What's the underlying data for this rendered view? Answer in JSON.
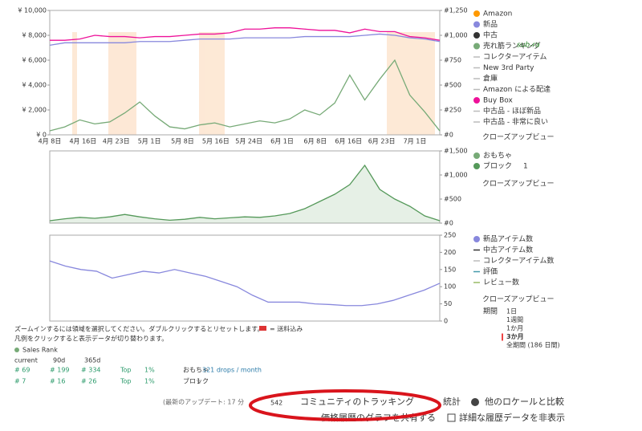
{
  "panels": [
    {
      "left_lim": [
        0,
        10000
      ],
      "left_ticks": [
        {
          "value": 10000,
          "label": "¥ 10,000"
        },
        {
          "value": 8000,
          "label": "¥ 8,000"
        },
        {
          "value": 6000,
          "label": "¥ 6,000"
        },
        {
          "value": 4000,
          "label": "¥ 4,000"
        },
        {
          "value": 2000,
          "label": "¥ 2,000"
        },
        {
          "value": 0,
          "label": "¥ 0"
        }
      ],
      "right_lim": [
        0,
        1250
      ],
      "right_ticks": [
        {
          "value": 1250,
          "label": "#1,250"
        },
        {
          "value": 1000,
          "label": "#1,000"
        },
        {
          "value": 750,
          "label": "#750"
        },
        {
          "value": 500,
          "label": "#500"
        },
        {
          "value": 250,
          "label": "#250"
        },
        {
          "value": 0,
          "label": "#0"
        }
      ],
      "x_labels": [
        "4月 8日",
        "4月 16日",
        "4月 23日",
        "5月 1日",
        "5月 8日",
        "5月 16日",
        "5月 24日",
        "6月 1日",
        "6月 8日",
        "6月 16日",
        "6月 23日",
        "7月 1日"
      ],
      "series": [
        {
          "color": "#8888dd",
          "axis": "left",
          "values": [
            7200,
            7400,
            7400,
            7400,
            7400,
            7400,
            7500,
            7500,
            7500,
            7600,
            7700,
            7700,
            7700,
            7800,
            7800,
            7800,
            7800,
            7900,
            7900,
            7900,
            7900,
            8000,
            8100,
            8000,
            7800,
            7700,
            7500
          ]
        },
        {
          "color": "#ee1199",
          "axis": "left",
          "values": [
            7600,
            7600,
            7700,
            8000,
            7900,
            7900,
            7800,
            7900,
            7900,
            8000,
            8100,
            8100,
            8200,
            8500,
            8500,
            8600,
            8600,
            8500,
            8400,
            8400,
            8200,
            8500,
            8300,
            8300,
            7900,
            7800,
            7600
          ]
        },
        {
          "color": "#77aa77",
          "axis": "right",
          "values": [
            40,
            80,
            150,
            110,
            130,
            220,
            330,
            190,
            80,
            60,
            100,
            120,
            80,
            110,
            140,
            120,
            160,
            250,
            200,
            320,
            600,
            350,
            560,
            750,
            400,
            230,
            40
          ]
        }
      ]
    },
    {
      "right_lim": [
        0,
        1500
      ],
      "right_ticks": [
        {
          "value": 1500,
          "label": "#1,500"
        },
        {
          "value": 1000,
          "label": "#1,000"
        },
        {
          "value": 500,
          "label": "#500"
        },
        {
          "value": 0,
          "label": "#0"
        }
      ],
      "series": [
        {
          "color": "#55995a",
          "axis": "right",
          "values": [
            50,
            90,
            120,
            100,
            130,
            180,
            130,
            90,
            60,
            80,
            120,
            90,
            110,
            130,
            120,
            150,
            200,
            300,
            450,
            600,
            800,
            1200,
            700,
            500,
            350,
            150,
            50
          ]
        }
      ]
    },
    {
      "right_lim": [
        0,
        250
      ],
      "right_ticks": [
        250,
        200,
        150,
        100,
        50,
        0
      ],
      "series": [
        {
          "color": "#8888dd",
          "axis": "right",
          "values": [
            175,
            160,
            150,
            145,
            125,
            135,
            145,
            140,
            150,
            140,
            130,
            115,
            100,
            75,
            55,
            55,
            55,
            50,
            48,
            45,
            45,
            50,
            60,
            75,
            90,
            110
          ]
        }
      ]
    }
  ],
  "legend_top": [
    {
      "text": "Amazon",
      "color": "#ff9900"
    },
    {
      "text": "新品",
      "color": "#8888dd"
    },
    {
      "text": "中古",
      "color": "#333333"
    },
    {
      "text": "売れ筋ランキング",
      "color": "#77aa77"
    },
    {
      "text": "コレクターアイテム",
      "color": "#bbbbbb"
    },
    {
      "text": "New 3rd Party",
      "color": "#bbbbbb"
    },
    {
      "text": "倉庫",
      "color": "#bbbbbb"
    },
    {
      "text": "Amazon による配達",
      "color": "#bbbbbb"
    },
    {
      "text": "Buy Box",
      "color": "#ee1199"
    },
    {
      "text": "中古品 - ほぼ新品",
      "color": "#bbbbbb"
    },
    {
      "text": "中古品 - 非常に良い",
      "color": "#bbbbbb"
    }
  ],
  "sub_ra": "sub-ra",
  "closeup": "クローズアップビュー",
  "legend_mid": [
    {
      "text": "おもちゃ",
      "color": "#77aa77"
    },
    {
      "text": "ブロック",
      "color": "#55995a"
    }
  ],
  "legend_mid_count": "1",
  "legend_bot": [
    {
      "text": "新品アイテム数",
      "color": "#8888dd"
    },
    {
      "text": "中古アイテム数",
      "color": "#333333"
    },
    {
      "text": "コレクターアイテム数",
      "color": "#bbbbbb"
    },
    {
      "text": "評価",
      "color": "#4499aa"
    },
    {
      "text": "レビュー数",
      "color": "#99bb66"
    }
  ],
  "period": {
    "label": "期間",
    "options": [
      "1日",
      "1週間",
      "1か月",
      "3か月",
      "全期間 (186 日間)"
    ]
  },
  "hint1": "ズームインするには領域を選択してください。ダブルクリックするとリセットします。",
  "shipping_note": "= 送料込み",
  "hint2": "凡例をクリックすると表示データが切り替わります。",
  "rank_title": "Sales Rank",
  "rank_head": [
    "current",
    "90d",
    "365d"
  ],
  "rank_rows": [
    [
      "# 69",
      "# 199",
      "# 334",
      "Top",
      "1%",
      "おもちゃ"
    ],
    [
      "# 7",
      "# 16",
      "# 26",
      "Top",
      "1%",
      "ブロック"
    ]
  ],
  "drops": "321 drops / month",
  "rank_count": "1",
  "footer": {
    "update": "(最新のアップデート: 17 分",
    "count": "542",
    "tracking": "コミュニティのトラッキング",
    "stats": "統計",
    "compare": "他のロケールと比較",
    "share": "価格履歴のグラフを共有する",
    "hide": "詳細な履歴データを非表示"
  }
}
